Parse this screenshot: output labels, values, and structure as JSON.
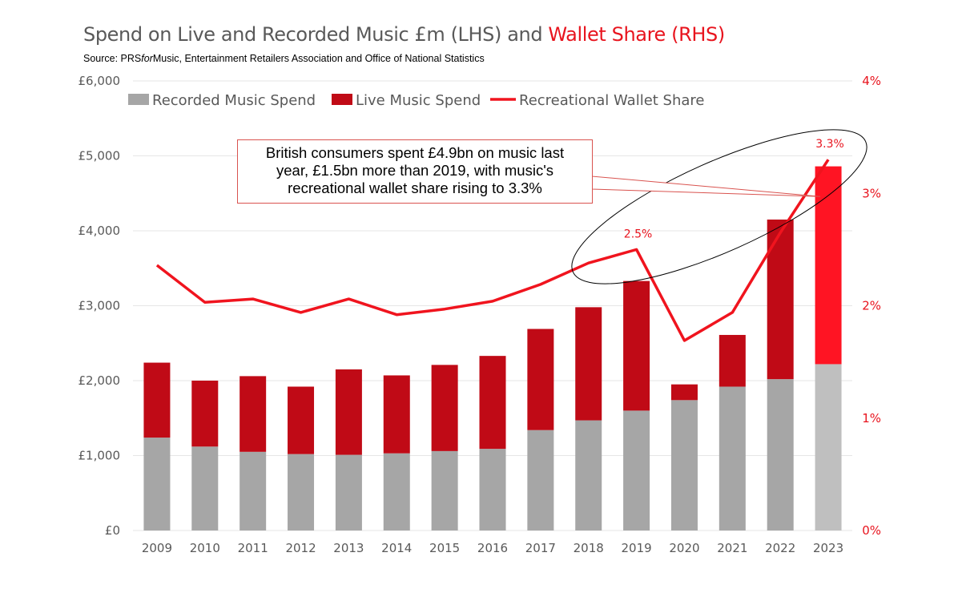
{
  "title": {
    "main": "Spend on Live and Recorded Music £m (LHS) and ",
    "highlight": "Wallet Share (RHS)"
  },
  "source": {
    "prefix": "Source: PRS",
    "italic": "for",
    "suffix": "Music, Entertainment Retailers Association and Office of National Statistics"
  },
  "colors": {
    "recorded": "#a6a6a6",
    "recorded_highlight": "#bfbfbf",
    "live": "#c00a16",
    "live_highlight": "#ff1423",
    "line": "#f0141e",
    "title_gray": "#595959",
    "axis_text": "#595959",
    "rhs_text": "#e8141e",
    "grid": "#e6e6e6"
  },
  "callout": {
    "lines": [
      "British consumers spent £4.9bn on music last",
      "year, £1.5bn more than 2019, with music's",
      "recreational wallet share rising to 3.3%"
    ]
  },
  "chart_data": {
    "type": "bar",
    "stacked": true,
    "categories": [
      "2009",
      "2010",
      "2011",
      "2012",
      "2013",
      "2014",
      "2015",
      "2016",
      "2017",
      "2018",
      "2019",
      "2020",
      "2021",
      "2022",
      "2023"
    ],
    "series": [
      {
        "name": "Recorded Music Spend",
        "values": [
          1240,
          1120,
          1050,
          1020,
          1010,
          1030,
          1060,
          1090,
          1340,
          1470,
          1600,
          1740,
          1920,
          2020,
          2220
        ]
      },
      {
        "name": "Live Music Spend",
        "values": [
          1000,
          880,
          1010,
          900,
          1140,
          1040,
          1150,
          1240,
          1350,
          1510,
          1730,
          210,
          690,
          2130,
          2640
        ]
      }
    ],
    "line_series": {
      "name": "Recreational Wallet Share",
      "axis": "right",
      "values": [
        2.36,
        2.03,
        2.06,
        1.94,
        2.06,
        1.92,
        1.97,
        2.04,
        2.19,
        2.38,
        2.5,
        1.69,
        1.94,
        2.65,
        3.3
      ]
    },
    "data_labels": [
      {
        "category": "2019",
        "text": "2.5%"
      },
      {
        "category": "2023",
        "text": "3.3%"
      }
    ],
    "highlight_category": "2023",
    "title": "Spend on Live and Recorded Music £m (LHS) and Wallet Share (RHS)",
    "ylabel": "",
    "ylim": [
      0,
      6000
    ],
    "yticks": [
      "£0",
      "£1,000",
      "£2,000",
      "£3,000",
      "£4,000",
      "£5,000",
      "£6,000"
    ],
    "y2lim": [
      0,
      4
    ],
    "y2ticks": [
      "0%",
      "1%",
      "2%",
      "3%",
      "4%"
    ],
    "legend": [
      "Recorded Music Spend",
      "Live Music Spend",
      "Recreational Wallet Share"
    ],
    "legend_position": "top"
  }
}
